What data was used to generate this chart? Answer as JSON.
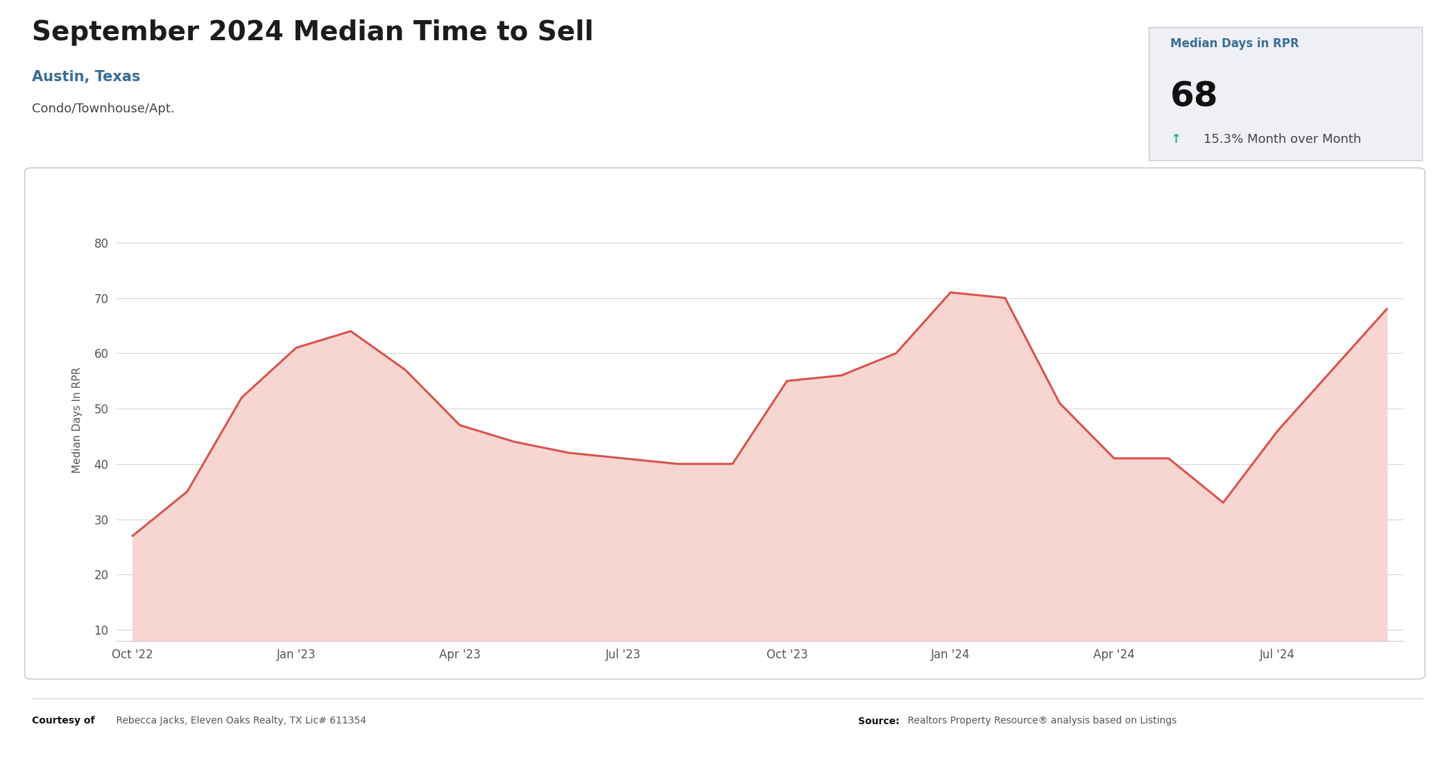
{
  "title": "September 2024 Median Time to Sell",
  "subtitle": "Austin, Texas",
  "subtitle2": "Condo/Townhouse/Apt.",
  "ylabel": "Median Days In RPR",
  "bg_color": "#ffffff",
  "chart_bg": "#ffffff",
  "line_color": "#d9534f",
  "fill_color": "#f7d5d0",
  "grid_color": "#d8d8d8",
  "stat_box_bg": "#eef0f6",
  "stat_label": "Median Days in RPR",
  "stat_value": "68",
  "stat_change": "15.3% Month over Month",
  "stat_arrow_color": "#2ab57d",
  "courtesy_bold": "Courtesy of",
  "courtesy_text": " Rebecca Jacks, Eleven Oaks Realty, TX Lic# 611354",
  "source_bold": "Source:",
  "source_text": " Realtors Property Resource® analysis based on Listings",
  "x_labels": [
    "Oct '22",
    "Jan '23",
    "Apr '23",
    "Jul '23",
    "Oct '23",
    "Jan '24",
    "Apr '24",
    "Jul '24"
  ],
  "x_indices": [
    0,
    3,
    6,
    9,
    12,
    15,
    18,
    21
  ],
  "data_x": [
    0,
    1,
    2,
    3,
    4,
    5,
    6,
    7,
    8,
    9,
    10,
    11,
    12,
    13,
    14,
    15,
    16,
    17,
    18,
    19,
    20,
    21,
    23
  ],
  "data_y": [
    27,
    35,
    52,
    61,
    64,
    57,
    47,
    44,
    42,
    41,
    40,
    40,
    55,
    56,
    60,
    71,
    70,
    51,
    41,
    41,
    33,
    46,
    68
  ],
  "ylim": [
    8,
    88
  ],
  "yticks": [
    10,
    20,
    30,
    40,
    50,
    60,
    70,
    80
  ],
  "title_fontsize": 28,
  "subtitle_fontsize": 15,
  "subtitle2_fontsize": 13,
  "axis_fontsize": 11,
  "tick_fontsize": 12,
  "stat_label_fontsize": 12,
  "stat_value_fontsize": 36,
  "stat_change_fontsize": 13,
  "footer_fontsize": 10
}
